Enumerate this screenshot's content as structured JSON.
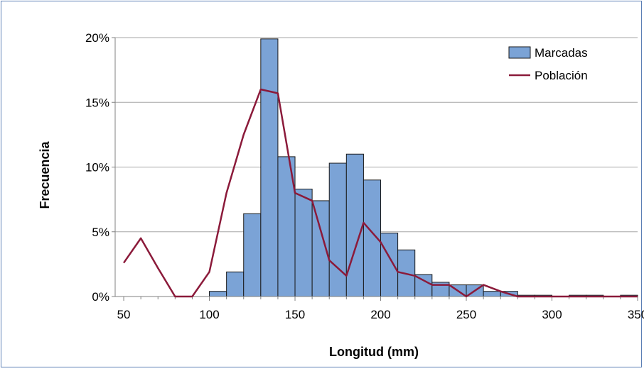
{
  "chart_data": {
    "type": "bar",
    "xlabel": "Longitud (mm)",
    "ylabel": "Frecuencia",
    "xlim": [
      45,
      350
    ],
    "ylim": [
      0,
      20
    ],
    "x_ticks": [
      50,
      100,
      150,
      200,
      250,
      300,
      350
    ],
    "x_tick_labels": [
      "50",
      "100",
      "150",
      "200",
      "250",
      "300",
      "350"
    ],
    "y_ticks": [
      0,
      5,
      10,
      15,
      20
    ],
    "y_tick_labels": [
      "0%",
      "5%",
      "10%",
      "15%",
      "20%"
    ],
    "grid": true,
    "legend_position": "top-right",
    "bin_width": 10,
    "series": [
      {
        "name": "Marcadas",
        "kind": "bar",
        "color": "#7ba3d6",
        "x": [
          105,
          115,
          125,
          135,
          145,
          155,
          165,
          175,
          185,
          195,
          205,
          215,
          225,
          235,
          245,
          255,
          265,
          275,
          285,
          295,
          305,
          315,
          325,
          335,
          345
        ],
        "values": [
          0.4,
          1.9,
          6.4,
          19.9,
          10.8,
          8.3,
          7.4,
          10.3,
          11.0,
          9.0,
          4.9,
          3.6,
          1.7,
          1.1,
          0.9,
          0.9,
          0.4,
          0.4,
          0.1,
          0.1,
          0.0,
          0.1,
          0.1,
          0.0,
          0.1
        ]
      },
      {
        "name": "Población",
        "kind": "line",
        "color": "#8b1a3a",
        "x": [
          50,
          60,
          70,
          80,
          90,
          100,
          110,
          120,
          130,
          140,
          150,
          160,
          170,
          180,
          190,
          200,
          210,
          220,
          230,
          240,
          250,
          260,
          270,
          280,
          290,
          300,
          310,
          320,
          330,
          340,
          350
        ],
        "values": [
          2.6,
          4.5,
          2.2,
          0.0,
          0.0,
          1.9,
          8.0,
          12.5,
          16.0,
          15.7,
          8.0,
          7.4,
          2.8,
          1.6,
          5.7,
          4.2,
          1.9,
          1.6,
          0.9,
          0.9,
          0.0,
          0.9,
          0.4,
          0.0,
          0.0,
          0.0,
          0.0,
          0.0,
          0.0,
          0.0,
          0.0
        ]
      }
    ]
  }
}
